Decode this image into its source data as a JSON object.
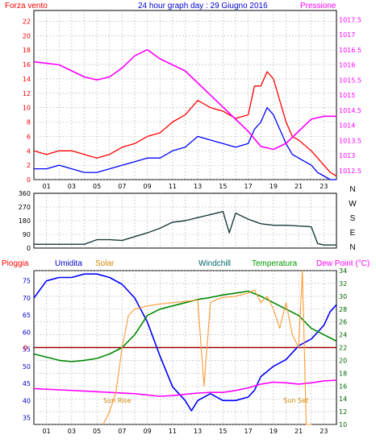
{
  "chart_data": [
    {
      "type": "line",
      "title": "24 hour graph day : 29 Giugno 2016",
      "left_axis_label": "Forza vento",
      "right_axis_label": "Pressione",
      "colors": {
        "left_axis": "#ff0000",
        "right_axis": "#ff00ff",
        "title": "#0000cc",
        "background": "#ffffff"
      },
      "x_tick_labels": [
        "01",
        "03",
        "05",
        "07",
        "09",
        "11",
        "13",
        "15",
        "17",
        "19",
        "21",
        "23"
      ],
      "x_range_hours": [
        0,
        24
      ],
      "y_left_ticks": [
        0,
        2,
        4,
        6,
        8,
        10,
        12,
        14,
        16,
        18,
        20,
        22
      ],
      "ylim_left": [
        0,
        23.5
      ],
      "y_right_ticks": [
        "1012.5",
        "1013",
        "1013.5",
        "1014",
        "1014.5",
        "1015",
        "1015.5",
        "1016",
        "1016.5",
        "1017",
        "1017.5"
      ],
      "ylim_right": [
        1012.2,
        1017.8
      ],
      "series": [
        {
          "axis": "left",
          "color": "#ff0000",
          "x": [
            0,
            1,
            2,
            3,
            4,
            5,
            6,
            7,
            8,
            9,
            10,
            11,
            12,
            13,
            14,
            15,
            16,
            17,
            17.5,
            18,
            18.5,
            19,
            19.5,
            20,
            20.5,
            21,
            22,
            22.5,
            23,
            23.5,
            24
          ],
          "y": [
            4,
            3.5,
            4,
            4,
            3.5,
            3,
            3.5,
            4.5,
            5,
            6,
            6.5,
            8,
            9,
            11,
            10,
            9.5,
            8.5,
            9,
            13,
            13,
            15,
            14,
            11,
            8,
            6,
            5.5,
            4,
            3,
            2,
            1,
            0.5
          ]
        },
        {
          "axis": "left",
          "color": "#0000ff",
          "x": [
            0,
            1,
            2,
            3,
            4,
            5,
            6,
            7,
            8,
            9,
            10,
            11,
            12,
            13,
            14,
            15,
            16,
            17,
            17.5,
            18,
            18.5,
            19,
            19.5,
            20,
            20.5,
            21,
            22,
            22.5,
            23,
            23.5,
            24
          ],
          "y": [
            1.5,
            1.5,
            2,
            1.5,
            1,
            1,
            1.5,
            2,
            2.5,
            3,
            3,
            4,
            4.5,
            6,
            5.5,
            5,
            4.5,
            5,
            7,
            8,
            10,
            9,
            7,
            5,
            3.5,
            3,
            2,
            1,
            0.5,
            0,
            0
          ]
        },
        {
          "axis": "right",
          "color": "#ff00ff",
          "x": [
            0,
            1,
            2,
            3,
            4,
            5,
            6,
            7,
            8,
            9,
            10,
            11,
            12,
            13,
            14,
            15,
            16,
            17,
            18,
            19,
            20,
            21,
            22,
            23,
            24
          ],
          "y": [
            1016.1,
            1016.05,
            1016,
            1015.8,
            1015.6,
            1015.5,
            1015.6,
            1015.9,
            1016.3,
            1016.5,
            1016.2,
            1016,
            1015.8,
            1015.4,
            1015,
            1014.6,
            1014.2,
            1013.8,
            1013.3,
            1013.2,
            1013.4,
            1013.8,
            1014.2,
            1014.3,
            1014.3
          ]
        }
      ]
    },
    {
      "type": "line",
      "right_axis_label": "N W S E N",
      "direction_letters": [
        "N",
        "W",
        "S",
        "E",
        "N"
      ],
      "y_ticks": [
        0,
        90,
        180,
        270,
        360
      ],
      "ylim": [
        0,
        360
      ],
      "x_range_hours": [
        0,
        24
      ],
      "series": [
        {
          "color": "#1a3a3a",
          "x": [
            0,
            2,
            3,
            4,
            5,
            6,
            7,
            8,
            9,
            10,
            11,
            12,
            13,
            14,
            15,
            15.5,
            16,
            17,
            18,
            19,
            20,
            21,
            22,
            22.5,
            23,
            24
          ],
          "y": [
            25,
            25,
            25,
            25,
            55,
            55,
            50,
            75,
            100,
            130,
            170,
            180,
            200,
            220,
            240,
            100,
            230,
            190,
            160,
            150,
            150,
            145,
            140,
            30,
            20,
            20
          ]
        }
      ]
    },
    {
      "type": "line",
      "header_labels": [
        {
          "text": "Pioggia",
          "color": "#ff0000"
        },
        {
          "text": "Umidita",
          "color": "#0000cc"
        },
        {
          "text": "Solar",
          "color": "#cc8800"
        },
        {
          "text": "Windchill",
          "color": "#006666"
        },
        {
          "text": "Temperatura",
          "color": "#009900"
        },
        {
          "text": "Dew Point (°C)",
          "color": "#ff00ff"
        }
      ],
      "annotations": [
        "Sun Rise",
        "Sun Set"
      ],
      "rain_zero_label": "0",
      "y_left_ticks": [
        35,
        40,
        45,
        50,
        55,
        60,
        65,
        70,
        75
      ],
      "ylim_left": [
        33,
        78
      ],
      "y_right_ticks": [
        10,
        12,
        14,
        16,
        18,
        20,
        22,
        24,
        26,
        28,
        30,
        32,
        34
      ],
      "ylim_right": [
        10,
        34
      ],
      "x_range_hours": [
        0,
        24
      ],
      "series": [
        {
          "axis": "left",
          "color": "#0000ff",
          "x": [
            0,
            1,
            2,
            3,
            4,
            5,
            6,
            7,
            8,
            9,
            10,
            11,
            12,
            12.5,
            13,
            14,
            15,
            16,
            17,
            17.5,
            18,
            19,
            20,
            21,
            22,
            23,
            23.5,
            24
          ],
          "y": [
            70,
            75,
            76,
            76,
            77,
            77,
            76,
            74,
            70,
            63,
            53,
            44,
            40,
            37,
            40,
            42,
            40,
            40,
            41,
            43,
            47,
            50,
            52,
            56,
            58,
            62,
            66,
            68
          ]
        },
        {
          "axis": "right",
          "color": "#008800",
          "x": [
            0,
            1,
            2,
            3,
            4,
            5,
            6,
            7,
            8,
            9,
            10,
            11,
            12,
            13,
            14,
            15,
            16,
            17,
            18,
            19,
            20,
            21,
            22,
            23,
            24
          ],
          "y": [
            21,
            20.5,
            20,
            19.8,
            20,
            20.3,
            21,
            22,
            24,
            27,
            28,
            28.5,
            29,
            29.5,
            29.8,
            30.2,
            30.5,
            30.8,
            30,
            29,
            28,
            27,
            25,
            24,
            23
          ]
        },
        {
          "axis": "right",
          "color": "#ff00ff",
          "x": [
            0,
            2,
            4,
            6,
            8,
            9,
            10,
            11,
            12,
            13,
            14,
            15,
            16,
            17,
            18,
            19,
            20,
            21,
            22,
            23,
            24
          ],
          "y": [
            15.6,
            15.4,
            15.2,
            15,
            14.8,
            14.6,
            14.4,
            14.5,
            14.7,
            14.9,
            15,
            15,
            15.3,
            15.7,
            16.3,
            16.6,
            16.5,
            16.3,
            16.5,
            16.8,
            16.9
          ]
        },
        {
          "axis": "right",
          "color": "#ff9933",
          "x": [
            5.5,
            6,
            6.5,
            7,
            7.5,
            8,
            9,
            10,
            11,
            12,
            13,
            13.5,
            14,
            14.5,
            15,
            16,
            17,
            17.5,
            18,
            18.5,
            19,
            19.5,
            20,
            20.5,
            21,
            21.3,
            21.6,
            22
          ],
          "y": [
            10,
            12,
            15,
            22,
            27,
            28,
            28.5,
            28.8,
            29,
            29.2,
            29.4,
            16,
            29,
            29.5,
            29.8,
            30,
            30.5,
            31,
            29,
            30,
            28,
            25,
            29,
            24,
            22,
            34,
            10,
            10
          ]
        }
      ]
    }
  ]
}
